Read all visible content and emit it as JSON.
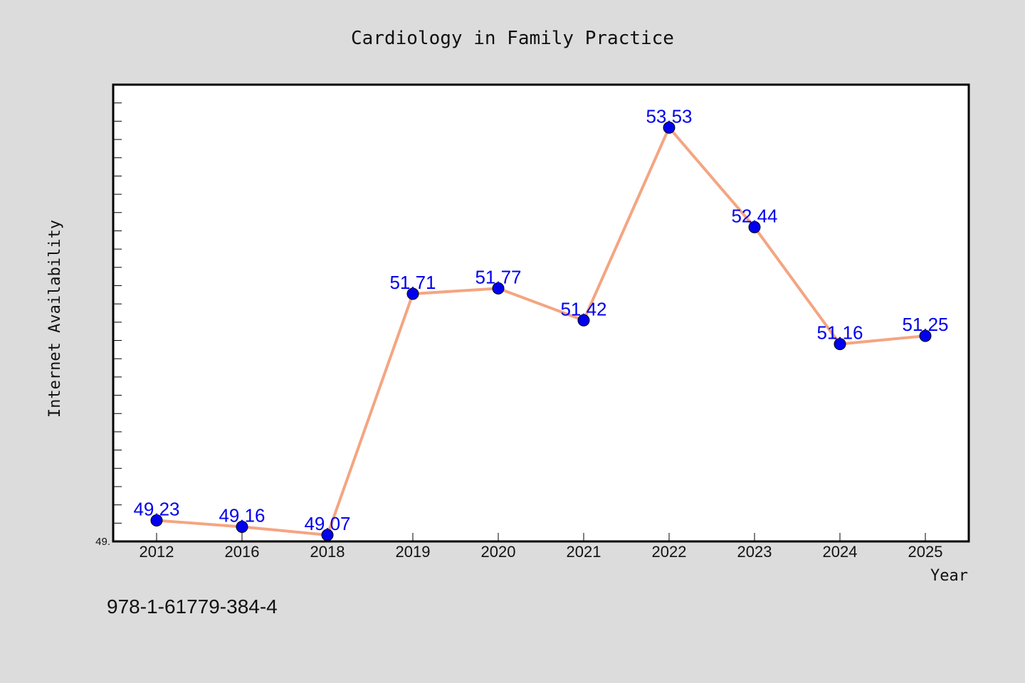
{
  "chart_data": {
    "type": "line",
    "title": "Cardiology in Family Practice",
    "xlabel": "Year",
    "ylabel": "Internet Availability",
    "categories": [
      "2012",
      "2016",
      "2018",
      "2019",
      "2020",
      "2021",
      "2022",
      "2023",
      "2024",
      "2025"
    ],
    "series": [
      {
        "values": [
          49.23,
          49.16,
          49.07,
          51.71,
          51.77,
          51.42,
          53.53,
          52.44,
          51.16,
          51.25
        ],
        "labels": [
          "49.23",
          "49.16",
          "49.07",
          "51.71",
          "51.77",
          "51.42",
          "53.53",
          "52.44",
          "51.16",
          "51.25"
        ]
      }
    ],
    "ylim": [
      49.0,
      54.0
    ],
    "y_min_label": "49.",
    "line_color": "#f4a582",
    "marker_color": "#0000ee",
    "label_color": "#0000ee",
    "grid": false,
    "legend": "none"
  },
  "footer": {
    "code": "978-1-61779-384-4"
  }
}
